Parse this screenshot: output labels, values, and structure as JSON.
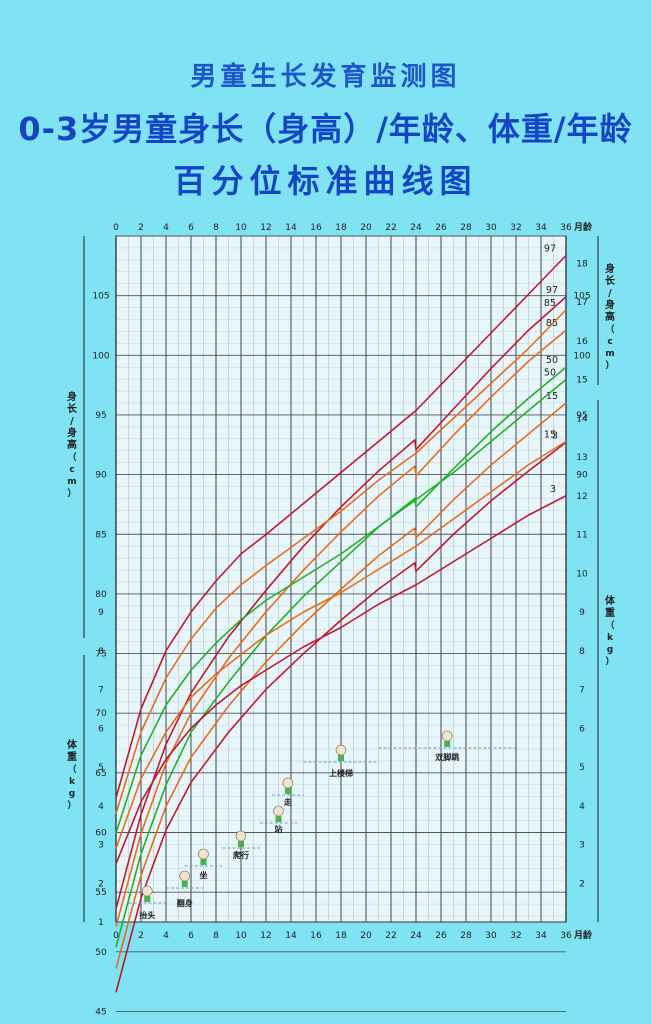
{
  "titles": {
    "line1": "男童生长发育监测图",
    "line2": "0-3岁男童身长（身高）/年龄、体重/年龄",
    "line3": "百分位标准曲线图"
  },
  "chart_data": {
    "type": "line",
    "x_axis": {
      "label": "月龄",
      "range": [
        0,
        36
      ],
      "ticks": [
        0,
        2,
        4,
        6,
        8,
        10,
        12,
        14,
        16,
        18,
        20,
        22,
        24,
        26,
        28,
        30,
        32,
        34,
        36
      ]
    },
    "height_axis": {
      "label": "身长/身高（cm）",
      "left_ticks": [
        45,
        50,
        55,
        60,
        65,
        70,
        75,
        80,
        85,
        90,
        95,
        100,
        105
      ],
      "right_ticks": [
        90,
        95,
        100,
        105
      ],
      "range": [
        41,
        110
      ]
    },
    "weight_axis": {
      "label": "体重（kg）",
      "left_ticks": [
        1,
        2,
        3,
        4,
        5,
        6,
        7,
        8,
        9
      ],
      "right_ticks": [
        2,
        3,
        4,
        5,
        6,
        7,
        8,
        9,
        10,
        11,
        12,
        13,
        14,
        15,
        16,
        17,
        18
      ],
      "range": [
        1,
        18.8
      ]
    },
    "colors": {
      "3": "#c0182c",
      "15": "#e86c1c",
      "50": "#22b02a",
      "85": "#e86c1c",
      "97": "#c0182c"
    },
    "height_series": [
      {
        "name": "97",
        "x": [
          0,
          2,
          4,
          6,
          9,
          12,
          15,
          18,
          21,
          23.9,
          24,
          27,
          30,
          33,
          36
        ],
        "y": [
          53.6,
          61.5,
          67.4,
          71.7,
          76.4,
          80.3,
          84.0,
          87.3,
          90.3,
          92.9,
          92.1,
          95.5,
          98.9,
          102.1,
          104.9
        ]
      },
      {
        "name": "85",
        "x": [
          0,
          2,
          4,
          6,
          9,
          12,
          15,
          18,
          21,
          23.9,
          24,
          27,
          30,
          33,
          36
        ],
        "y": [
          52.1,
          59.9,
          65.8,
          70.0,
          74.6,
          78.5,
          82.0,
          85.2,
          88.2,
          90.7,
          89.9,
          93.3,
          96.5,
          99.5,
          102.1
        ]
      },
      {
        "name": "50",
        "x": [
          0,
          2,
          4,
          6,
          9,
          12,
          15,
          18,
          21,
          23.9,
          24,
          27,
          30,
          33,
          36
        ],
        "y": [
          50.4,
          58.2,
          64.0,
          68.4,
          72.6,
          76.5,
          79.8,
          82.7,
          85.6,
          88.0,
          87.3,
          90.5,
          93.6,
          96.4,
          99.0
        ]
      },
      {
        "name": "15",
        "x": [
          0,
          2,
          4,
          6,
          9,
          12,
          15,
          18,
          21,
          23.9,
          24,
          27,
          30,
          33,
          36
        ],
        "y": [
          48.6,
          56.4,
          62.2,
          66.3,
          70.6,
          74.3,
          77.5,
          80.4,
          83.2,
          85.5,
          84.7,
          87.9,
          90.8,
          93.4,
          96.0
        ]
      },
      {
        "name": "3",
        "x": [
          0,
          2,
          4,
          6,
          9,
          12,
          15,
          18,
          21,
          23.9,
          24,
          27,
          30,
          33,
          36
        ],
        "y": [
          46.6,
          54.5,
          60.2,
          64.2,
          68.4,
          72.0,
          75.0,
          77.8,
          80.4,
          82.6,
          81.9,
          85.0,
          87.8,
          90.3,
          92.7
        ]
      }
    ],
    "weight_series": [
      {
        "name": "97",
        "x": [
          0,
          2,
          4,
          6,
          8,
          10,
          12,
          15,
          18,
          21,
          24,
          27,
          30,
          33,
          36
        ],
        "y": [
          4.2,
          6.5,
          8.0,
          9.0,
          9.8,
          10.5,
          11.0,
          11.8,
          12.6,
          13.4,
          14.2,
          15.2,
          16.2,
          17.2,
          18.2
        ]
      },
      {
        "name": "85",
        "x": [
          0,
          2,
          4,
          6,
          8,
          10,
          12,
          15,
          18,
          21,
          24,
          27,
          30,
          33,
          36
        ],
        "y": [
          3.8,
          5.9,
          7.3,
          8.3,
          9.1,
          9.7,
          10.2,
          10.9,
          11.6,
          12.4,
          13.1,
          14.0,
          14.9,
          15.8,
          16.8
        ]
      },
      {
        "name": "50",
        "x": [
          0,
          2,
          4,
          6,
          8,
          10,
          12,
          15,
          18,
          21,
          24,
          27,
          30,
          33,
          36
        ],
        "y": [
          3.3,
          5.3,
          6.6,
          7.5,
          8.2,
          8.8,
          9.3,
          9.9,
          10.5,
          11.2,
          11.9,
          12.6,
          13.4,
          14.2,
          15.0
        ]
      },
      {
        "name": "15",
        "x": [
          0,
          2,
          4,
          6,
          8,
          10,
          12,
          15,
          18,
          21,
          24,
          27,
          30,
          33,
          36
        ],
        "y": [
          2.9,
          4.7,
          5.9,
          6.8,
          7.4,
          7.9,
          8.4,
          9.0,
          9.5,
          10.1,
          10.7,
          11.4,
          12.1,
          12.8,
          13.4
        ]
      },
      {
        "name": "3",
        "x": [
          0,
          2,
          4,
          6,
          8,
          10,
          12,
          15,
          18,
          21,
          24,
          27,
          30,
          33,
          36
        ],
        "y": [
          2.5,
          4.1,
          5.2,
          6.0,
          6.6,
          7.1,
          7.5,
          8.1,
          8.6,
          9.2,
          9.7,
          10.3,
          10.9,
          11.5,
          12.0
        ]
      }
    ],
    "milestones": [
      {
        "label": "抬头",
        "x_start": 1,
        "x_end": 4
      },
      {
        "label": "翻身",
        "x_start": 4,
        "x_end": 7
      },
      {
        "label": "坐",
        "x_start": 5.5,
        "x_end": 8.5
      },
      {
        "label": "爬行",
        "x_start": 8.5,
        "x_end": 11.5
      },
      {
        "label": "站",
        "x_start": 11.5,
        "x_end": 14.5
      },
      {
        "label": "走",
        "x_start": 12.5,
        "x_end": 15
      },
      {
        "label": "上楼梯",
        "x_start": 15,
        "x_end": 21
      },
      {
        "label": "双脚跳",
        "x_start": 21,
        "x_end": 32
      }
    ]
  }
}
